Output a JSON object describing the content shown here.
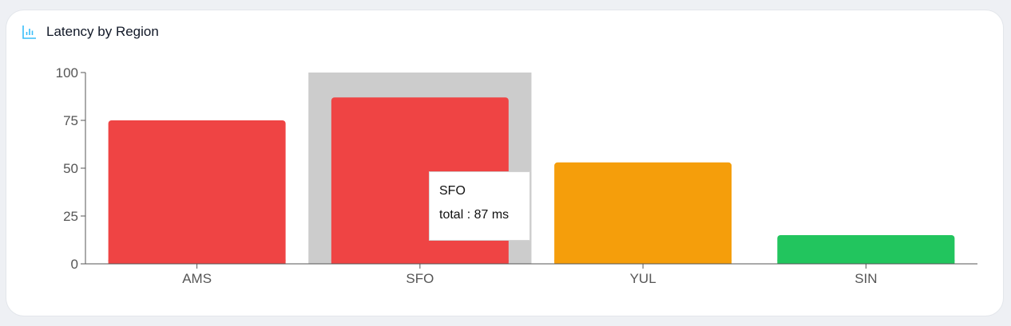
{
  "header": {
    "title": "Latency by Region",
    "icon": "bar-chart-icon"
  },
  "colors": {
    "axis": "#555555",
    "tick_text": "#555555",
    "hover_band": "#cccccc",
    "icon": "#38bdf8"
  },
  "chart_data": {
    "type": "bar",
    "categories": [
      "AMS",
      "SFO",
      "YUL",
      "SIN"
    ],
    "series": [
      {
        "values": [
          75,
          87,
          53,
          15
        ],
        "colors": [
          "#ef4444",
          "#ef4444",
          "#f59e0b",
          "#22c55e"
        ]
      }
    ],
    "title": "Latency by Region",
    "xlabel": "",
    "ylabel": "",
    "ylim": [
      0,
      100
    ],
    "yticks": [
      0,
      25,
      50,
      75,
      100
    ],
    "grid": false,
    "highlighted_category": "SFO"
  },
  "tooltip": {
    "label": "SFO",
    "value_text": "total : 87 ms"
  }
}
